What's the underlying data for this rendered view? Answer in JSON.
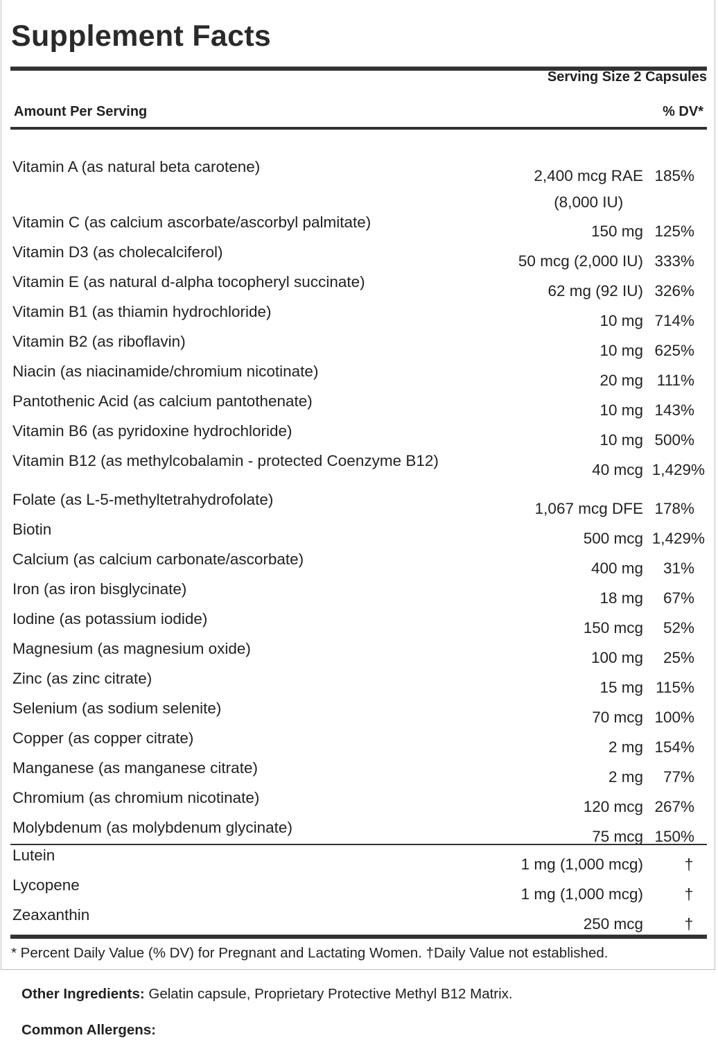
{
  "title": "Supplement Facts",
  "serving_size": "Serving Size 2 Capsules",
  "amount_per_serving": "Amount Per Serving",
  "dv_header": "% DV*",
  "nutrients": [
    {
      "name": "Vitamin A (as natural beta carotene)",
      "amount": "2,400 mcg RAE",
      "amount2": "(8,000 IU)",
      "dv": "185%"
    },
    {
      "name": "Vitamin C (as calcium ascorbate/ascorbyl palmitate)",
      "amount": "150 mg",
      "dv": "125%"
    },
    {
      "name": "Vitamin D3 (as cholecalciferol)",
      "amount": "50 mcg (2,000 IU)",
      "dv": "333%"
    },
    {
      "name": "Vitamin E (as natural d-alpha tocopheryl succinate)",
      "amount": "62 mg (92 IU)",
      "dv": "326%"
    },
    {
      "name": "Vitamin B1 (as thiamin hydrochloride)",
      "amount": "10 mg",
      "dv": "714%"
    },
    {
      "name": "Vitamin B2 (as riboflavin)",
      "amount": "10 mg",
      "dv": "625%"
    },
    {
      "name": "Niacin (as niacinamide/chromium nicotinate)",
      "amount": "20 mg",
      "dv": "111%"
    },
    {
      "name": "Pantothenic Acid (as calcium pantothenate)",
      "amount": "10 mg",
      "dv": "143%"
    },
    {
      "name": "Vitamin B6 (as pyridoxine hydrochloride)",
      "amount": "10 mg",
      "dv": "500%"
    },
    {
      "name": "Vitamin B12 (as methylcobalamin - protected Coenzyme B12)",
      "amount": "40 mcg",
      "dv": "1,429%"
    },
    {
      "name": "Folate (as L-5-methyltetrahydrofolate)",
      "amount": "1,067 mcg DFE",
      "dv": "178%"
    },
    {
      "name": "Biotin",
      "amount": "500 mcg",
      "dv": "1,429%"
    },
    {
      "name": "Calcium (as calcium carbonate/ascorbate)",
      "amount": "400 mg",
      "dv": "31%"
    },
    {
      "name": "Iron (as iron bisglycinate)",
      "amount": "18 mg",
      "dv": "67%"
    },
    {
      "name": "Iodine (as potassium iodide)",
      "amount": "150 mcg",
      "dv": "52%"
    },
    {
      "name": "Magnesium (as magnesium oxide)",
      "amount": "100 mg",
      "dv": "25%"
    },
    {
      "name": "Zinc (as zinc citrate)",
      "amount": "15 mg",
      "dv": "115%"
    },
    {
      "name": "Selenium (as sodium selenite)",
      "amount": "70 mcg",
      "dv": "100%"
    },
    {
      "name": "Copper (as copper citrate)",
      "amount": "2 mg",
      "dv": "154%"
    },
    {
      "name": "Manganese (as manganese citrate)",
      "amount": "2 mg",
      "dv": "77%"
    },
    {
      "name": "Chromium (as chromium nicotinate)",
      "amount": "120 mcg",
      "dv": "267%"
    },
    {
      "name": "Molybdenum (as molybdenum glycinate)",
      "amount": "75 mcg",
      "dv": "150%"
    }
  ],
  "other_nutrients": [
    {
      "name": "Lutein",
      "amount": "1 mg (1,000 mcg)",
      "dv": "†"
    },
    {
      "name": "Lycopene",
      "amount": "1 mg (1,000 mcg)",
      "dv": "†"
    },
    {
      "name": "Zeaxanthin",
      "amount": "250 mcg",
      "dv": "†"
    }
  ],
  "footnote": "* Percent Daily Value (% DV) for Pregnant and Lactating Women. †Daily Value not established.",
  "other_ingredients_label": "Other Ingredients:",
  "other_ingredients": " Gelatin capsule, Proprietary Protective Methyl B12 Matrix.",
  "common_allergens_label": "Common Allergens:"
}
